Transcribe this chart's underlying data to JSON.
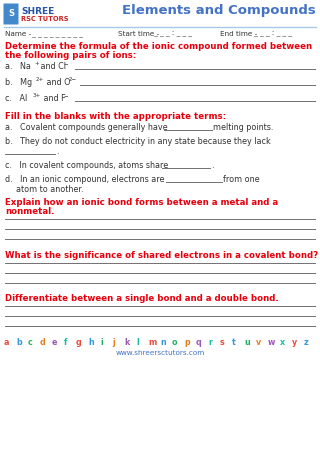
{
  "title": "Elements and Compounds",
  "bg_color": "#ffffff",
  "red_color": "#e8000d",
  "blue_color": "#4472c4",
  "dark_color": "#333333",
  "gray_color": "#555555",
  "line_color": "#707070",
  "header_line_color": "#a8c8e8",
  "logo_shree_color": "#2255aa",
  "logo_rsc_color": "#cc2222",
  "name_label": "Name -",
  "name_dashes": " _ _ _ _ _ _ _ _",
  "start_label": "Start time - ",
  "start_dashes": "_ _ _ : _ _ _",
  "end_label": "End time - ",
  "end_dashes": "_ _ _ : _ _ _",
  "s1_title_line1": "Determine the formula of the ionic compound formed between",
  "s1_title_line2": "the following pairs of ions:",
  "s1_a": "a.   Na",
  "s1_a_sup1": "+",
  "s1_a_mid": " and Cl",
  "s1_a_sup2": "−",
  "s1_b": "b.   Mg",
  "s1_b_sup1": "2+",
  "s1_b_mid": " and O",
  "s1_b_sup2": "2−",
  "s1_c": "c.   Al",
  "s1_c_sup1": "3+",
  "s1_c_mid": " and F",
  "s1_c_sup2": "−",
  "s2_title": "Fill in the blanks with the appropriate terms:",
  "s2_a1": "a.   Covalent compounds generally have",
  "s2_a2": "melting points.",
  "s2_b1": "b.   They do not conduct electricity in any state because they lack",
  "s2_b2": ".",
  "s2_c1": "c.   In covalent compounds, atoms share",
  "s2_c2": ".",
  "s2_d1": "d.   In an ionic compound, electrons are",
  "s2_d2": "from one",
  "s2_d3": "atom to another.",
  "s3_title_line1": "Explain how an ionic bond forms between a metal and a",
  "s3_title_line2": "nonmetal.",
  "s4_title": "What is the significance of shared electrons in a covalent bond?",
  "s5_title": "Differentiate between a single bond and a double bond.",
  "alphabet": [
    "a",
    "b",
    "c",
    "d",
    "e",
    "f",
    "g",
    "h",
    "i",
    "j",
    "k",
    "l",
    "m",
    "n",
    "o",
    "p",
    "q",
    "r",
    "s",
    "t",
    "u",
    "v",
    "w",
    "x",
    "y",
    "z"
  ],
  "alphabet_colors": [
    "#e74c3c",
    "#3498db",
    "#27ae60",
    "#e67e22",
    "#9b59b6",
    "#1abc9c",
    "#e74c3c",
    "#3498db",
    "#27ae60",
    "#e67e22",
    "#9b59b6",
    "#1abc9c",
    "#e74c3c",
    "#3498db",
    "#27ae60",
    "#e67e22",
    "#9b59b6",
    "#1abc9c",
    "#e74c3c",
    "#3498db",
    "#27ae60",
    "#e67e22",
    "#9b59b6",
    "#1abc9c",
    "#e74c3c",
    "#3498db"
  ],
  "website": "www.shreersctutors.com"
}
